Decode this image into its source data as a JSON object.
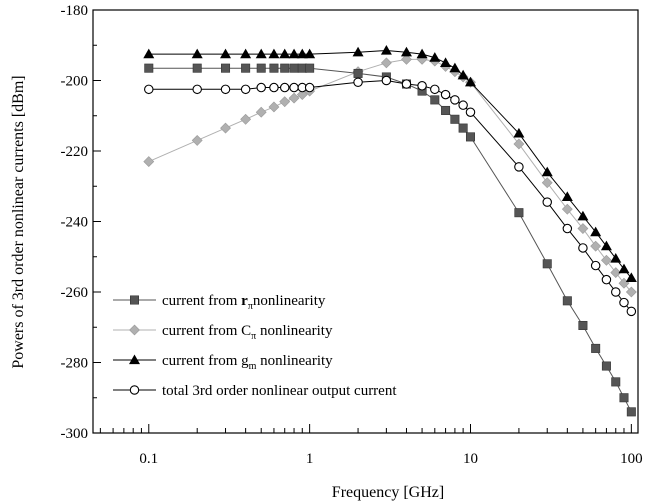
{
  "chart_data": {
    "type": "line",
    "xlabel": "Frequency [GHz]",
    "ylabel": "Powers of 3rd order nonlinear currents [dBm]",
    "xscale": "log",
    "xlim": [
      0.045,
      110
    ],
    "ylim": [
      -300,
      -180
    ],
    "x_tick_labels": [
      "0.1",
      "1",
      "10",
      "100"
    ],
    "y_tick_labels": [
      "-180",
      "-200",
      "-220",
      "-240",
      "-260",
      "-280",
      "-300"
    ],
    "grid": false,
    "legend_position": "bottom-left",
    "legend": [
      {
        "prefix": "current from ",
        "symbol": "r",
        "sub": "π",
        "suffix": "nonlinearity"
      },
      {
        "prefix": "current from ",
        "symbol": "C",
        "sub": "π",
        "suffix": " nonlinearity"
      },
      {
        "prefix": "current from ",
        "symbol": "g",
        "sub": "m",
        "suffix": " nonlinearity"
      },
      {
        "prefix": "total 3rd order nonlinear output current",
        "symbol": "",
        "sub": "",
        "suffix": ""
      }
    ],
    "series": [
      {
        "marker": "square",
        "color": "#555555",
        "x": [
          0.1,
          0.2,
          0.3,
          0.4,
          0.5,
          0.6,
          0.7,
          0.8,
          0.9,
          1,
          2,
          3,
          4,
          5,
          6,
          7,
          8,
          9,
          10,
          20,
          30,
          40,
          50,
          60,
          70,
          80,
          90,
          100
        ],
        "y": [
          -196.5,
          -196.5,
          -196.5,
          -196.5,
          -196.5,
          -196.5,
          -196.5,
          -196.5,
          -196.5,
          -196.5,
          -198,
          -199,
          -201,
          -203,
          -205.5,
          -208.5,
          -211,
          -213.5,
          -216,
          -237.5,
          -252,
          -262.5,
          -269.5,
          -276,
          -281,
          -285.5,
          -290,
          -294
        ]
      },
      {
        "marker": "diamond",
        "color": "#b0b0b0",
        "x": [
          0.1,
          0.2,
          0.3,
          0.4,
          0.5,
          0.6,
          0.7,
          0.8,
          0.9,
          1,
          2,
          3,
          4,
          5,
          6,
          7,
          8,
          9,
          10,
          20,
          30,
          40,
          50,
          60,
          70,
          80,
          90,
          100
        ],
        "y": [
          -223,
          -217,
          -213.5,
          -211,
          -209,
          -207.5,
          -206,
          -205,
          -204,
          -203,
          -197.5,
          -195,
          -194,
          -194,
          -194.5,
          -196,
          -197.5,
          -199,
          -200.5,
          -218,
          -229,
          -236.5,
          -242,
          -247,
          -251,
          -254.5,
          -257.5,
          -260
        ]
      },
      {
        "marker": "triangle",
        "color": "#000000",
        "x": [
          0.1,
          0.2,
          0.3,
          0.4,
          0.5,
          0.6,
          0.7,
          0.8,
          0.9,
          1,
          2,
          3,
          4,
          5,
          6,
          7,
          8,
          9,
          10,
          20,
          30,
          40,
          50,
          60,
          70,
          80,
          90,
          100
        ],
        "y": [
          -192.5,
          -192.5,
          -192.5,
          -192.5,
          -192.5,
          -192.5,
          -192.5,
          -192.5,
          -192.5,
          -192.5,
          -192,
          -191.5,
          -192,
          -192.5,
          -193.5,
          -195,
          -196.5,
          -198.5,
          -200.5,
          -215,
          -226,
          -233,
          -238.5,
          -243,
          -247,
          -250.5,
          -253.5,
          -256
        ]
      },
      {
        "marker": "circle",
        "color": "#000000",
        "x": [
          0.1,
          0.2,
          0.3,
          0.4,
          0.5,
          0.6,
          0.7,
          0.8,
          0.9,
          1,
          2,
          3,
          4,
          5,
          6,
          7,
          8,
          9,
          10,
          20,
          30,
          40,
          50,
          60,
          70,
          80,
          90,
          100
        ],
        "y": [
          -202.5,
          -202.5,
          -202.5,
          -202.5,
          -202,
          -202,
          -202,
          -202,
          -202,
          -202,
          -200.5,
          -200,
          -201,
          -201.5,
          -202.5,
          -204,
          -205.5,
          -207,
          -209,
          -224.5,
          -234.5,
          -242,
          -247.5,
          -252.5,
          -256.5,
          -260,
          -263,
          -265.5
        ]
      }
    ]
  }
}
